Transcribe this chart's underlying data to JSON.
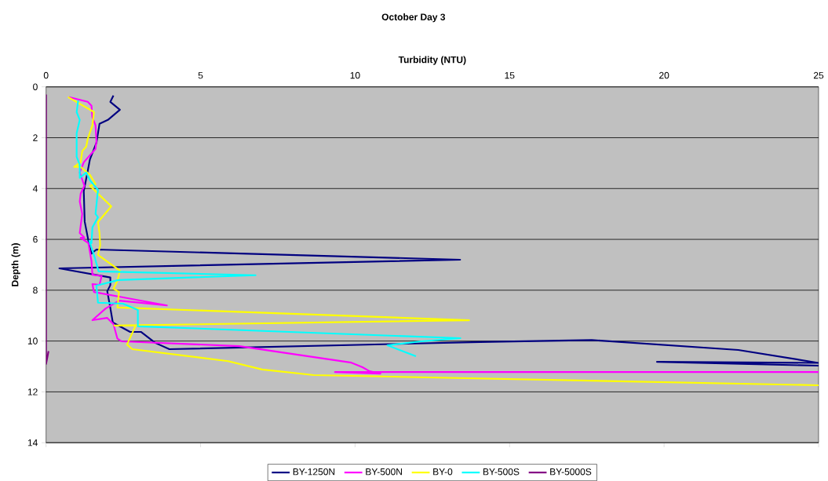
{
  "chart_data": {
    "type": "line",
    "title": "October Day 3",
    "xlabel": "Turbidity (NTU)",
    "ylabel": "Depth (m)",
    "xlim": [
      0,
      25
    ],
    "xticks": [
      0,
      5,
      10,
      15,
      20,
      25
    ],
    "ylim": [
      14,
      0
    ],
    "yticks": [
      0,
      2,
      4,
      6,
      8,
      10,
      12,
      14
    ],
    "grid": "y",
    "legend": "bottom",
    "marker": "none",
    "line_style": "solid",
    "series": [
      {
        "name": "BY-1250N",
        "color": "#000080",
        "x": [
          2.18,
          2.08,
          2.39,
          2.0,
          1.73,
          1.63,
          1.42,
          1.35,
          1.22,
          1.25,
          1.37,
          1.47,
          1.63,
          13.4,
          0.43,
          2.08,
          2.08,
          1.98,
          2.08,
          2.16,
          2.72,
          3.07,
          3.53,
          3.99,
          14.05,
          17.66,
          22.4,
          25,
          19.77,
          25
        ],
        "values": [
          0.34,
          0.59,
          0.9,
          1.3,
          1.45,
          2.2,
          2.85,
          3.3,
          4.1,
          5.3,
          6.05,
          6.56,
          6.4,
          6.8,
          7.14,
          7.5,
          7.8,
          8.04,
          8.7,
          9.27,
          9.64,
          9.64,
          10.07,
          10.32,
          10.04,
          9.96,
          10.35,
          10.86,
          10.82,
          10.97
        ]
      },
      {
        "name": "BY-500N",
        "color": "#ff00ff",
        "x": [
          0.74,
          1.35,
          1.47,
          1.5,
          1.6,
          1.63,
          1.6,
          1.22,
          1.09,
          1.24,
          1.12,
          1.09,
          1.17,
          1.09,
          1.24,
          1.12,
          1.37,
          1.47,
          1.5,
          1.8,
          1.73,
          1.5,
          1.55,
          2.36,
          3.91,
          2.36,
          1.93,
          1.5,
          1.98,
          2.18,
          2.31,
          2.44,
          6.25,
          9.88,
          10.24,
          10.47,
          10.82,
          9.35,
          25
        ],
        "values": [
          0.4,
          0.59,
          0.74,
          1.2,
          1.51,
          2.13,
          2.44,
          2.97,
          3.37,
          3.89,
          4.2,
          4.51,
          5.0,
          5.75,
          5.93,
          5.94,
          6.15,
          6.86,
          7.39,
          7.44,
          7.79,
          7.76,
          8.07,
          8.25,
          8.6,
          8.41,
          8.72,
          9.18,
          9.09,
          9.33,
          9.91,
          10.01,
          10.2,
          10.85,
          11.03,
          11.19,
          11.28,
          11.22,
          11.22
        ]
      },
      {
        "name": "BY-0",
        "color": "#ffff00",
        "x": [
          0.71,
          1.55,
          1.5,
          1.35,
          1.3,
          1.17,
          1.12,
          0.91,
          1.12,
          1.42,
          1.6,
          1.42,
          1.68,
          2.11,
          1.68,
          1.73,
          1.75,
          1.68,
          2.39,
          2.31,
          2.18,
          2.36,
          2.31,
          13.69,
          2.21,
          2.9,
          2.62,
          2.79,
          5.89,
          6.99,
          8.66,
          25
        ],
        "values": [
          0.4,
          0.99,
          1.51,
          2.04,
          2.35,
          2.53,
          2.97,
          3.15,
          3.15,
          3.46,
          3.83,
          3.89,
          4.2,
          4.7,
          5.32,
          5.75,
          6.24,
          6.61,
          7.23,
          7.63,
          7.94,
          8.07,
          8.68,
          9.18,
          9.39,
          9.39,
          10.14,
          10.32,
          10.79,
          11.12,
          11.34,
          11.74
        ]
      },
      {
        "name": "BY-500S",
        "color": "#00ffff",
        "x": [
          1.04,
          0.99,
          1.09,
          0.99,
          0.99,
          1.09,
          1.09,
          1.3,
          1.42,
          1.68,
          1.6,
          1.68,
          1.5,
          1.47,
          1.4,
          1.58,
          1.7,
          6.78,
          2.34,
          1.63,
          1.68,
          2.49,
          2.97,
          2.97,
          13.41,
          12.14,
          11.05,
          11.97
        ],
        "values": [
          0.53,
          0.99,
          1.3,
          1.82,
          2.75,
          3.06,
          3.58,
          3.37,
          3.68,
          4.05,
          5.0,
          5.13,
          5.53,
          6.15,
          6.06,
          6.73,
          7.26,
          7.41,
          7.6,
          7.82,
          8.49,
          8.53,
          8.78,
          9.42,
          9.89,
          10.01,
          10.17,
          10.6
        ]
      },
      {
        "name": "BY-5000S",
        "color": "#800080",
        "x": [
          0,
          0,
          0.08
        ],
        "values": [
          0.3,
          10.9,
          10.4
        ]
      }
    ]
  }
}
